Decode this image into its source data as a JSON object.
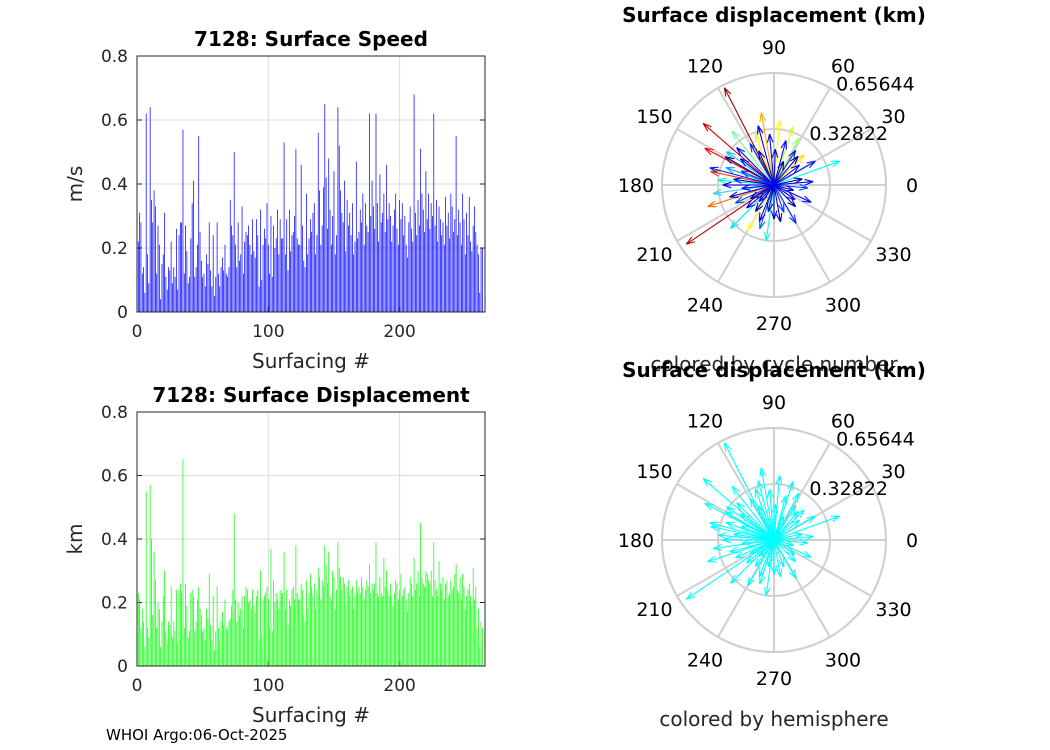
{
  "chart_data": [
    {
      "id": "speed",
      "type": "bar",
      "title": "7128: Surface Speed",
      "xlabel": "Surfacing #",
      "ylabel": "m/s",
      "xlim": [
        0,
        265
      ],
      "ylim": [
        0,
        0.8
      ],
      "xticks": [
        "0",
        "100",
        "200"
      ],
      "yticks": [
        "0",
        "0.2",
        "0.4",
        "0.6",
        "0.8"
      ],
      "grid": true,
      "color": "#0000ff",
      "values": [
        0.22,
        0.31,
        0.28,
        0.12,
        0.14,
        0.06,
        0.62,
        0.18,
        0.09,
        0.64,
        0.35,
        0.28,
        0.38,
        0.33,
        0.12,
        0.27,
        0.21,
        0.04,
        0.15,
        0.18,
        0.31,
        0.11,
        0.07,
        0.14,
        0.13,
        0.22,
        0.09,
        0.14,
        0.11,
        0.26,
        0.07,
        0.24,
        0.28,
        0.28,
        0.57,
        0.12,
        0.27,
        0.19,
        0.09,
        0.11,
        0.23,
        0.34,
        0.41,
        0.11,
        0.14,
        0.21,
        0.55,
        0.25,
        0.16,
        0.11,
        0.12,
        0.08,
        0.18,
        0.15,
        0.28,
        0.13,
        0.08,
        0.24,
        0.05,
        0.11,
        0.28,
        0.12,
        0.08,
        0.14,
        0.17,
        0.13,
        0.21,
        0.12,
        0.11,
        0.14,
        0.35,
        0.27,
        0.24,
        0.5,
        0.21,
        0.14,
        0.28,
        0.16,
        0.18,
        0.33,
        0.12,
        0.22,
        0.25,
        0.24,
        0.27,
        0.21,
        0.18,
        0.29,
        0.19,
        0.17,
        0.29,
        0.24,
        0.08,
        0.32,
        0.1,
        0.21,
        0.26,
        0.23,
        0.34,
        0.21,
        0.12,
        0.3,
        0.11,
        0.27,
        0.2,
        0.23,
        0.32,
        0.18,
        0.29,
        0.23,
        0.23,
        0.53,
        0.18,
        0.29,
        0.13,
        0.32,
        0.19,
        0.24,
        0.25,
        0.3,
        0.51,
        0.23,
        0.21,
        0.21,
        0.46,
        0.27,
        0.16,
        0.14,
        0.37,
        0.18,
        0.23,
        0.29,
        0.25,
        0.31,
        0.34,
        0.18,
        0.24,
        0.56,
        0.38,
        0.21,
        0.27,
        0.39,
        0.65,
        0.42,
        0.26,
        0.48,
        0.32,
        0.21,
        0.3,
        0.44,
        0.18,
        0.24,
        0.64,
        0.52,
        0.38,
        0.31,
        0.28,
        0.41,
        0.19,
        0.35,
        0.27,
        0.31,
        0.24,
        0.34,
        0.18,
        0.22,
        0.47,
        0.23,
        0.25,
        0.32,
        0.28,
        0.37,
        0.21,
        0.34,
        0.27,
        0.25,
        0.62,
        0.3,
        0.41,
        0.33,
        0.26,
        0.62,
        0.34,
        0.22,
        0.43,
        0.28,
        0.31,
        0.37,
        0.25,
        0.46,
        0.29,
        0.34,
        0.3,
        0.22,
        0.27,
        0.32,
        0.37,
        0.26,
        0.21,
        0.35,
        0.29,
        0.34,
        0.24,
        0.3,
        0.21,
        0.17,
        0.28,
        0.33,
        0.26,
        0.22,
        0.68,
        0.31,
        0.24,
        0.35,
        0.27,
        0.51,
        0.37,
        0.32,
        0.25,
        0.44,
        0.29,
        0.37,
        0.26,
        0.34,
        0.3,
        0.62,
        0.27,
        0.35,
        0.22,
        0.33,
        0.29,
        0.24,
        0.28,
        0.21,
        0.36,
        0.27,
        0.31,
        0.23,
        0.37,
        0.33,
        0.25,
        0.29,
        0.55,
        0.24,
        0.32,
        0.28,
        0.21,
        0.37,
        0.29,
        0.18,
        0.31,
        0.24,
        0.36,
        0.22,
        0.19,
        0.27,
        0.33,
        0.25,
        0.21,
        0.18,
        0.06,
        0.2,
        0.2
      ]
    },
    {
      "id": "displacement",
      "type": "bar",
      "title": "7128: Surface Displacement",
      "xlabel": "Surfacing #",
      "ylabel": "km",
      "xlim": [
        0,
        265
      ],
      "ylim": [
        0,
        0.8
      ],
      "xticks": [
        "0",
        "100",
        "200"
      ],
      "yticks": [
        "0",
        "0.2",
        "0.4",
        "0.6",
        "0.8"
      ],
      "grid": true,
      "color": "#00ff00",
      "values": [
        0.23,
        0.21,
        0.12,
        0.18,
        0.14,
        0.06,
        0.55,
        0.12,
        0.09,
        0.57,
        0.4,
        0.16,
        0.36,
        0.27,
        0.12,
        0.2,
        0.18,
        0.06,
        0.14,
        0.22,
        0.3,
        0.11,
        0.07,
        0.14,
        0.13,
        0.25,
        0.09,
        0.14,
        0.11,
        0.24,
        0.07,
        0.24,
        0.26,
        0.23,
        0.65,
        0.12,
        0.26,
        0.19,
        0.09,
        0.11,
        0.23,
        0.24,
        0.22,
        0.11,
        0.14,
        0.21,
        0.25,
        0.18,
        0.16,
        0.11,
        0.12,
        0.08,
        0.18,
        0.15,
        0.29,
        0.13,
        0.08,
        0.22,
        0.05,
        0.11,
        0.25,
        0.12,
        0.08,
        0.14,
        0.17,
        0.13,
        0.21,
        0.12,
        0.11,
        0.14,
        0.15,
        0.19,
        0.24,
        0.48,
        0.21,
        0.14,
        0.2,
        0.16,
        0.18,
        0.22,
        0.12,
        0.22,
        0.25,
        0.24,
        0.2,
        0.21,
        0.18,
        0.24,
        0.19,
        0.17,
        0.22,
        0.24,
        0.08,
        0.3,
        0.1,
        0.21,
        0.22,
        0.23,
        0.25,
        0.21,
        0.12,
        0.37,
        0.11,
        0.27,
        0.2,
        0.23,
        0.21,
        0.18,
        0.24,
        0.23,
        0.23,
        0.36,
        0.18,
        0.24,
        0.13,
        0.21,
        0.19,
        0.24,
        0.25,
        0.21,
        0.38,
        0.23,
        0.21,
        0.21,
        0.26,
        0.24,
        0.16,
        0.14,
        0.27,
        0.18,
        0.23,
        0.29,
        0.25,
        0.22,
        0.26,
        0.18,
        0.24,
        0.31,
        0.28,
        0.21,
        0.27,
        0.25,
        0.38,
        0.32,
        0.26,
        0.36,
        0.22,
        0.21,
        0.3,
        0.28,
        0.18,
        0.24,
        0.39,
        0.31,
        0.28,
        0.24,
        0.28,
        0.26,
        0.19,
        0.25,
        0.27,
        0.22,
        0.24,
        0.25,
        0.18,
        0.22,
        0.27,
        0.23,
        0.25,
        0.23,
        0.28,
        0.25,
        0.21,
        0.24,
        0.27,
        0.25,
        0.32,
        0.23,
        0.26,
        0.24,
        0.26,
        0.39,
        0.23,
        0.22,
        0.28,
        0.23,
        0.22,
        0.34,
        0.25,
        0.3,
        0.24,
        0.22,
        0.26,
        0.22,
        0.19,
        0.23,
        0.27,
        0.26,
        0.21,
        0.24,
        0.29,
        0.22,
        0.24,
        0.25,
        0.21,
        0.17,
        0.23,
        0.28,
        0.26,
        0.22,
        0.34,
        0.24,
        0.26,
        0.3,
        0.22,
        0.45,
        0.28,
        0.26,
        0.25,
        0.3,
        0.29,
        0.27,
        0.26,
        0.3,
        0.22,
        0.39,
        0.27,
        0.24,
        0.22,
        0.33,
        0.26,
        0.24,
        0.28,
        0.21,
        0.26,
        0.27,
        0.22,
        0.23,
        0.27,
        0.24,
        0.25,
        0.29,
        0.32,
        0.24,
        0.23,
        0.28,
        0.21,
        0.29,
        0.25,
        0.18,
        0.22,
        0.24,
        0.26,
        0.22,
        0.19,
        0.31,
        0.21,
        0.25,
        0.12,
        0.18,
        0.06,
        0.14,
        0.12
      ]
    },
    {
      "id": "polar-cycle",
      "type": "polar-vector",
      "title": "Surface displacement (km)",
      "subtitle": "colored by cycle number",
      "rlim": [
        0,
        0.65644
      ],
      "rticks": [
        "0.32822",
        "0.65644"
      ],
      "theta_labels": [
        "0",
        "30",
        "60",
        "90",
        "120",
        "150",
        "180",
        "210",
        "240",
        "270",
        "300",
        "330"
      ],
      "color_scale": "jet by cycle",
      "arrows": [
        {
          "angle": 117,
          "r": 0.64,
          "color": "#990000"
        },
        {
          "angle": 139,
          "r": 0.55,
          "color": "#cc0000"
        },
        {
          "angle": 152,
          "r": 0.46,
          "color": "#ff0000"
        },
        {
          "angle": 168,
          "r": 0.38,
          "color": "#ff3300"
        },
        {
          "angle": 214,
          "r": 0.62,
          "color": "#b30000"
        },
        {
          "angle": 198,
          "r": 0.41,
          "color": "#ff6600"
        },
        {
          "angle": 100,
          "r": 0.43,
          "color": "#ffaa00"
        },
        {
          "angle": 85,
          "r": 0.38,
          "color": "#ffff00"
        },
        {
          "angle": 72,
          "r": 0.36,
          "color": "#ccff33"
        },
        {
          "angle": 62,
          "r": 0.31,
          "color": "#99ff66"
        },
        {
          "angle": 45,
          "r": 0.25,
          "color": "#ffdd00"
        },
        {
          "angle": 20,
          "r": 0.41,
          "color": "#00ffff"
        },
        {
          "angle": 110,
          "r": 0.32,
          "color": "#ffee00"
        },
        {
          "angle": 128,
          "r": 0.4,
          "color": "#66ff99"
        },
        {
          "angle": 145,
          "r": 0.34,
          "color": "#00ccff"
        },
        {
          "angle": 160,
          "r": 0.3,
          "color": "#0099ff"
        },
        {
          "angle": 175,
          "r": 0.33,
          "color": "#00ffcc"
        },
        {
          "angle": 188,
          "r": 0.36,
          "color": "#33ccff"
        },
        {
          "angle": 225,
          "r": 0.36,
          "color": "#00e0ff"
        },
        {
          "angle": 240,
          "r": 0.31,
          "color": "#ffff33"
        },
        {
          "angle": 252,
          "r": 0.27,
          "color": "#0066ff"
        },
        {
          "angle": 262,
          "r": 0.33,
          "color": "#00ffee"
        },
        {
          "angle": 280,
          "r": 0.22,
          "color": "#0000cc"
        },
        {
          "angle": 300,
          "r": 0.26,
          "color": "#0033ff"
        },
        {
          "angle": 315,
          "r": 0.18,
          "color": "#000099"
        },
        {
          "angle": 335,
          "r": 0.24,
          "color": "#0000ff"
        },
        {
          "angle": 355,
          "r": 0.2,
          "color": "#0044ff"
        },
        {
          "angle": 5,
          "r": 0.23,
          "color": "#0000dd"
        },
        {
          "angle": 30,
          "r": 0.28,
          "color": "#0022ff"
        },
        {
          "angle": 50,
          "r": 0.22,
          "color": "#0000aa"
        },
        {
          "angle": 75,
          "r": 0.27,
          "color": "#0000ff"
        },
        {
          "angle": 95,
          "r": 0.3,
          "color": "#0011cc"
        },
        {
          "angle": 105,
          "r": 0.36,
          "color": "#0000ee"
        },
        {
          "angle": 120,
          "r": 0.28,
          "color": "#0033cc"
        },
        {
          "angle": 135,
          "r": 0.31,
          "color": "#0000ff"
        },
        {
          "angle": 150,
          "r": 0.33,
          "color": "#000088"
        },
        {
          "angle": 165,
          "r": 0.39,
          "color": "#0022dd"
        },
        {
          "angle": 180,
          "r": 0.3,
          "color": "#0000ff"
        },
        {
          "angle": 195,
          "r": 0.27,
          "color": "#0000bb"
        },
        {
          "angle": 205,
          "r": 0.25,
          "color": "#0044ee"
        },
        {
          "angle": 220,
          "r": 0.21,
          "color": "#0000ff"
        },
        {
          "angle": 235,
          "r": 0.19,
          "color": "#000099"
        },
        {
          "angle": 248,
          "r": 0.23,
          "color": "#0000ff"
        },
        {
          "angle": 270,
          "r": 0.2,
          "color": "#0000cc"
        },
        {
          "angle": 290,
          "r": 0.17,
          "color": "#0033ff"
        },
        {
          "angle": 325,
          "r": 0.15,
          "color": "#0000ff"
        },
        {
          "angle": 12,
          "r": 0.17,
          "color": "#0000aa"
        },
        {
          "angle": 38,
          "r": 0.19,
          "color": "#0000ff"
        },
        {
          "angle": 58,
          "r": 0.24,
          "color": "#0022cc"
        },
        {
          "angle": 88,
          "r": 0.21,
          "color": "#0000ff"
        },
        {
          "angle": 114,
          "r": 0.22,
          "color": "#0000dd"
        },
        {
          "angle": 142,
          "r": 0.25,
          "color": "#0000ff"
        },
        {
          "angle": 157,
          "r": 0.21,
          "color": "#0033ff"
        },
        {
          "angle": 172,
          "r": 0.24,
          "color": "#0000ee"
        },
        {
          "angle": 186,
          "r": 0.19,
          "color": "#0000ff"
        },
        {
          "angle": 210,
          "r": 0.16,
          "color": "#0000bb"
        },
        {
          "angle": 228,
          "r": 0.13,
          "color": "#0000ff"
        },
        {
          "angle": 258,
          "r": 0.16,
          "color": "#0000cc"
        },
        {
          "angle": 345,
          "r": 0.12,
          "color": "#0000ff"
        },
        {
          "angle": 68,
          "r": 0.15,
          "color": "#0000aa"
        }
      ]
    },
    {
      "id": "polar-hemisphere",
      "type": "polar-vector",
      "title": "Surface displacement (km)",
      "subtitle": "colored by hemisphere",
      "rlim": [
        0,
        0.65644
      ],
      "rticks": [
        "0.32822",
        "0.65644"
      ],
      "theta_labels": [
        "0",
        "30",
        "60",
        "90",
        "120",
        "150",
        "180",
        "210",
        "240",
        "270",
        "300",
        "330"
      ],
      "color": "#00ffff"
    }
  ],
  "footer": "WHOI Argo:06-Oct-2025"
}
